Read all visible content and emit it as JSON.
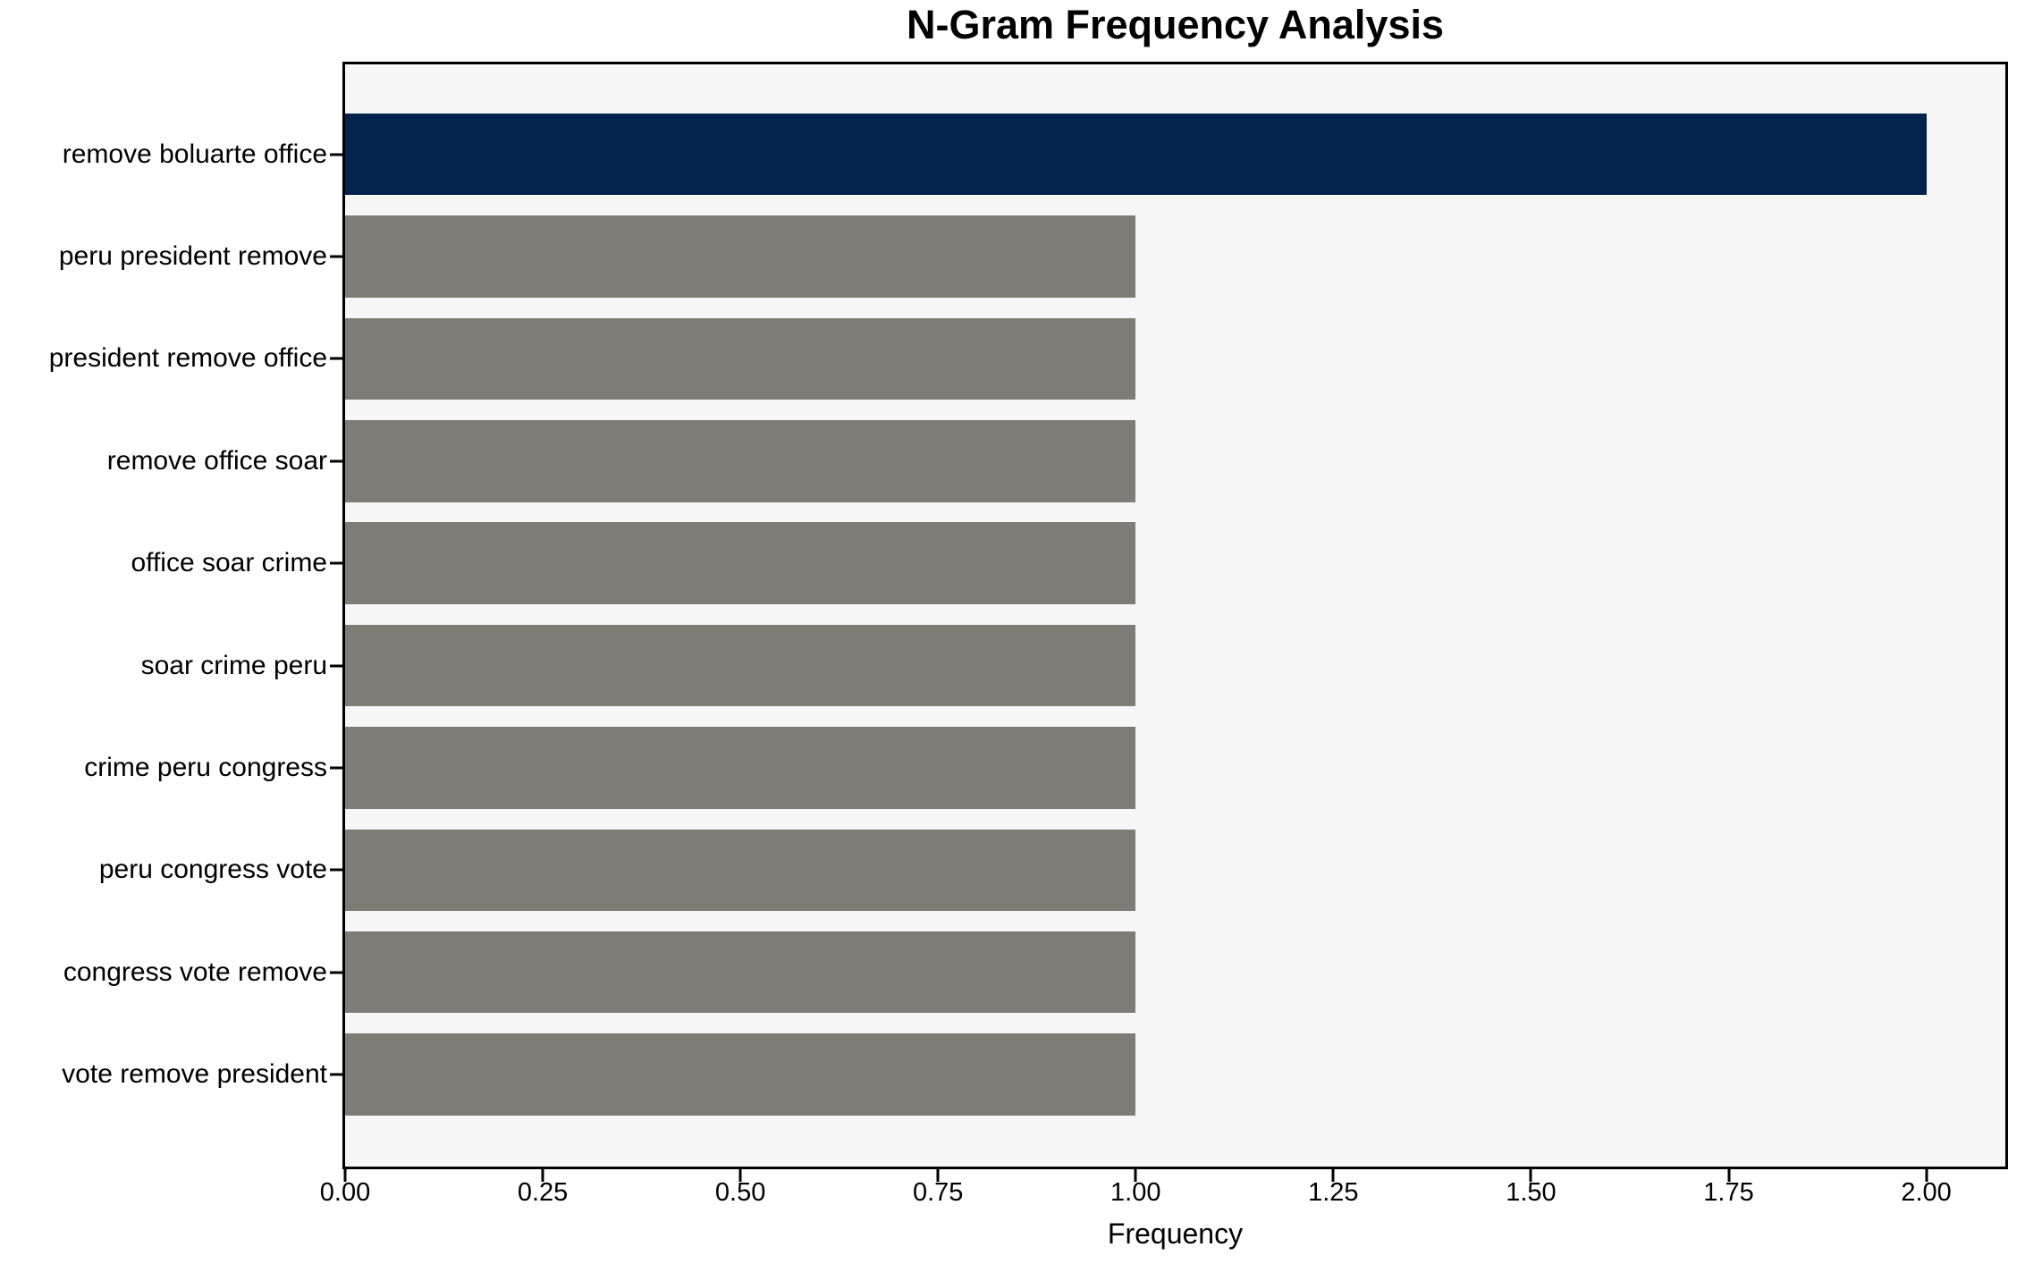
{
  "chart_data": {
    "type": "bar",
    "orientation": "horizontal",
    "title": "N-Gram Frequency Analysis",
    "xlabel": "Frequency",
    "ylabel": "",
    "categories": [
      "remove boluarte office",
      "peru president remove",
      "president remove office",
      "remove office soar",
      "office soar crime",
      "soar crime peru",
      "crime peru congress",
      "peru congress vote",
      "congress vote remove",
      "vote remove president"
    ],
    "values": [
      2,
      1,
      1,
      1,
      1,
      1,
      1,
      1,
      1,
      1
    ],
    "bar_colors": [
      "#02234d",
      "#7e7c77",
      "#7e7c77",
      "#7e7c77",
      "#7e7c77",
      "#7e7c77",
      "#7e7c77",
      "#7e7c77",
      "#7e7c77",
      "#7e7c77"
    ],
    "xticks": [
      0,
      0.25,
      0.5,
      0.75,
      1,
      1.25,
      1.5,
      1.75,
      2
    ],
    "xtick_labels": [
      "0.00",
      "0.25",
      "0.50",
      "0.75",
      "1.00",
      "1.25",
      "1.50",
      "1.75",
      "2.00"
    ],
    "xlim": [
      0,
      2.1
    ],
    "ylim": [
      -0.88,
      9.9
    ],
    "bar_height_units": 0.8,
    "grid": false,
    "legend": null,
    "colors": {
      "highlight_bar": "#02234d",
      "default_bar": "#7e7c77",
      "plot_background": "#f7f7f7",
      "figure_background": "#ffffff",
      "axis": "#000000",
      "text": "#000000"
    }
  }
}
